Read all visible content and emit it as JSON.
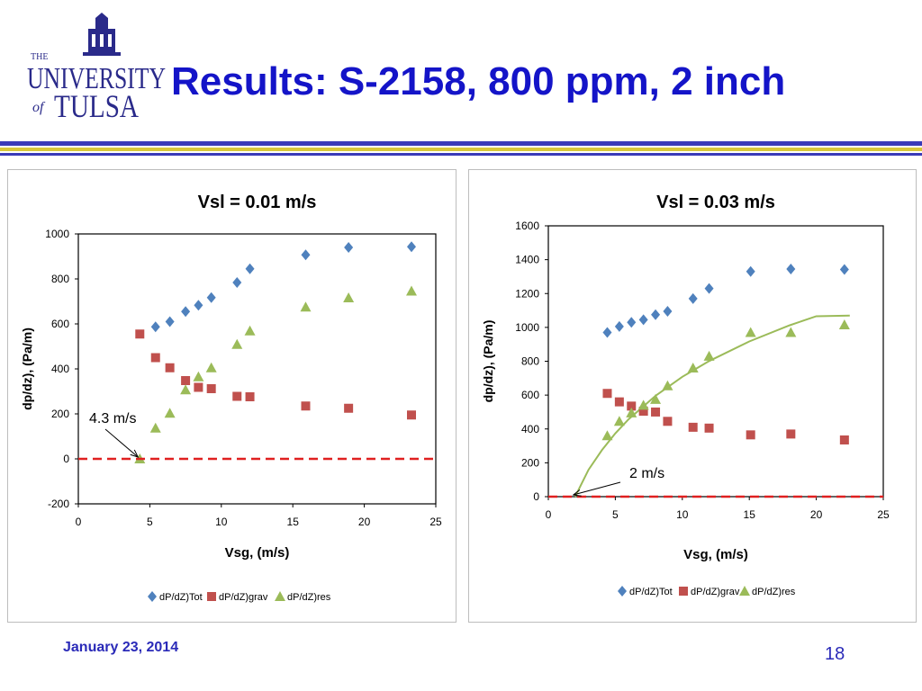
{
  "header": {
    "title": "Results: S-2158, 800 ppm, 2 inch",
    "logo": {
      "line1": "THE",
      "line2": "UNIVERSITY",
      "line3": "of",
      "line4": "TULSA"
    }
  },
  "footer": {
    "date": "January 23, 2014",
    "page": "18"
  },
  "colors": {
    "title": "#1414c8",
    "rule_blue": "#3a3ab8",
    "rule_gold": "#d8c83a",
    "tot": "#4f81bd",
    "grav": "#c0504d",
    "res": "#9bbb59",
    "zero_line": "#e02020"
  },
  "chart_data": [
    {
      "type": "scatter",
      "title": "Vsl = 0.01 m/s",
      "xlabel": "Vsg, (m/s)",
      "ylabel": "dp/dz), (Pa/m)",
      "xlim": [
        0,
        25
      ],
      "ylim": [
        -200,
        1000
      ],
      "xticks": [
        0,
        5,
        10,
        15,
        20,
        25
      ],
      "yticks": [
        -200,
        0,
        200,
        400,
        600,
        800,
        1000
      ],
      "grid": false,
      "legend": "bottom",
      "series": [
        {
          "name": "dP/dZ)Tot",
          "marker": "diamond",
          "color": "#4f81bd",
          "x": [
            5.4,
            6.4,
            7.5,
            8.4,
            9.3,
            11.1,
            12.0,
            15.9,
            18.9,
            23.3
          ],
          "y": [
            587,
            610,
            655,
            683,
            717,
            784,
            845,
            907,
            940,
            943
          ]
        },
        {
          "name": "dP/dZ)grav",
          "marker": "square",
          "color": "#c0504d",
          "x": [
            4.3,
            5.4,
            6.4,
            7.5,
            8.4,
            9.3,
            11.1,
            12.0,
            15.9,
            18.9,
            23.3
          ],
          "y": [
            555,
            450,
            405,
            348,
            318,
            312,
            278,
            276,
            235,
            225,
            195
          ]
        },
        {
          "name": "dP/dZ)res",
          "marker": "triangle",
          "color": "#9bbb59",
          "x": [
            4.3,
            5.4,
            6.4,
            7.5,
            8.4,
            9.3,
            11.1,
            12.0,
            15.9,
            18.9,
            23.3
          ],
          "y": [
            0,
            137,
            203,
            307,
            365,
            405,
            509,
            569,
            675,
            716,
            746
          ]
        }
      ],
      "annotation": {
        "text": "4.3 m/s",
        "points_to": [
          4.3,
          0
        ]
      },
      "reference_line": {
        "y": 0,
        "style": "dashed",
        "color": "#e02020"
      }
    },
    {
      "type": "scatter",
      "title": "Vsl = 0.03 m/s",
      "xlabel": "Vsg, (m/s)",
      "ylabel": "dp/dz), (Pa/m)",
      "xlim": [
        0,
        25
      ],
      "ylim": [
        0,
        1600
      ],
      "xticks": [
        0,
        5,
        10,
        15,
        20,
        25
      ],
      "yticks": [
        0,
        200,
        400,
        600,
        800,
        1000,
        1200,
        1400,
        1600
      ],
      "grid": false,
      "legend": "bottom",
      "series": [
        {
          "name": "dP/dZ)Tot",
          "marker": "diamond",
          "color": "#4f81bd",
          "x": [
            4.4,
            5.3,
            6.2,
            7.1,
            8.0,
            8.9,
            10.8,
            12.0,
            15.1,
            18.1,
            22.1
          ],
          "y": [
            970,
            1005,
            1030,
            1045,
            1075,
            1095,
            1170,
            1230,
            1330,
            1345,
            1342
          ]
        },
        {
          "name": "dP/dZ)grav",
          "marker": "square",
          "color": "#c0504d",
          "x": [
            4.4,
            5.3,
            6.2,
            7.1,
            8.0,
            8.9,
            10.8,
            12.0,
            15.1,
            18.1,
            22.1
          ],
          "y": [
            610,
            560,
            535,
            505,
            500,
            445,
            410,
            405,
            365,
            370,
            335
          ]
        },
        {
          "name": "dP/dZ)res",
          "marker": "triangle",
          "color": "#9bbb59",
          "x": [
            4.4,
            5.3,
            6.2,
            7.1,
            8.0,
            8.9,
            10.8,
            12.0,
            15.1,
            18.1,
            22.1
          ],
          "y": [
            360,
            445,
            495,
            540,
            575,
            655,
            760,
            830,
            970,
            970,
            1015
          ]
        }
      ],
      "trend": {
        "series": "dP/dZ)res",
        "color": "#9bbb59",
        "x": [
          2.0,
          3,
          4,
          5,
          6,
          8,
          10,
          12,
          15,
          18,
          20,
          22.5
        ],
        "y": [
          0,
          159,
          275,
          374,
          458,
          596,
          708,
          801,
          917,
          1012,
          1066,
          1070
        ]
      },
      "annotation": {
        "text": "2 m/s",
        "points_to": [
          2.0,
          0
        ]
      },
      "reference_line": {
        "y": 0,
        "style": "dashed",
        "color": "#e02020"
      }
    }
  ]
}
